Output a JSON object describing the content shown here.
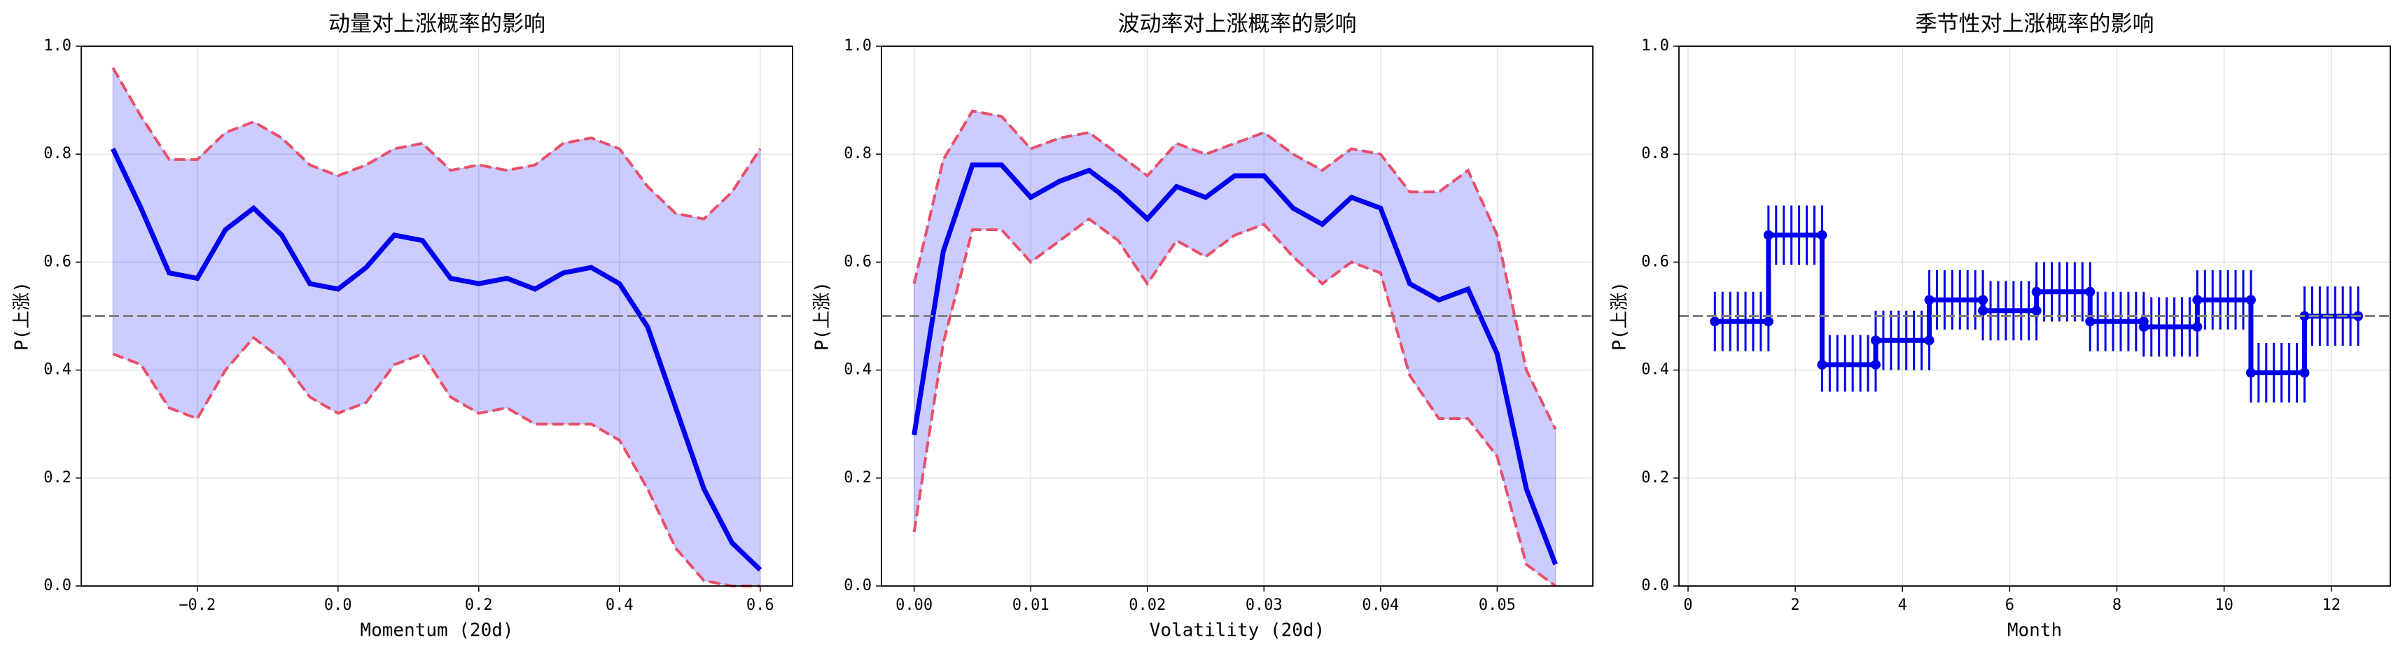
{
  "chart_data": [
    {
      "type": "band",
      "title": "动量对上涨概率的影响",
      "xlabel": "Momentum (20d)",
      "ylabel": "P(上涨)",
      "x": [
        -0.32,
        -0.28,
        -0.24,
        -0.2,
        -0.16,
        -0.12,
        -0.08,
        -0.04,
        0.0,
        0.04,
        0.08,
        0.12,
        0.16,
        0.2,
        0.24,
        0.28,
        0.32,
        0.36,
        0.4,
        0.44,
        0.48,
        0.52,
        0.56,
        0.6
      ],
      "values": [
        0.81,
        0.7,
        0.58,
        0.57,
        0.66,
        0.7,
        0.65,
        0.56,
        0.55,
        0.59,
        0.65,
        0.64,
        0.57,
        0.56,
        0.57,
        0.55,
        0.58,
        0.59,
        0.56,
        0.48,
        0.33,
        0.18,
        0.08,
        0.03
      ],
      "upper": [
        0.96,
        0.87,
        0.79,
        0.79,
        0.84,
        0.86,
        0.83,
        0.78,
        0.76,
        0.78,
        0.81,
        0.82,
        0.77,
        0.78,
        0.77,
        0.78,
        0.82,
        0.83,
        0.81,
        0.74,
        0.69,
        0.68,
        0.73,
        0.81
      ],
      "lower": [
        0.43,
        0.41,
        0.33,
        0.31,
        0.4,
        0.46,
        0.42,
        0.35,
        0.32,
        0.34,
        0.41,
        0.43,
        0.35,
        0.32,
        0.33,
        0.3,
        0.3,
        0.3,
        0.27,
        0.18,
        0.07,
        0.01,
        0.0,
        0.0
      ],
      "color": "#0000ee",
      "band_color": "#0000ff",
      "bound_color": "#e8506a",
      "ref_line": 0.5,
      "grid": true,
      "xlim": [
        -0.365,
        0.646
      ],
      "xticks": [
        {
          "value": -0.2,
          "label": "−0.2"
        },
        {
          "value": 0.0,
          "label": "0.0"
        },
        0.2,
        0.4,
        0.6
      ],
      "ylim": [
        0,
        1
      ],
      "yticks": [
        {
          "value": 0,
          "label": "0.0"
        },
        0.2,
        0.4,
        0.6,
        0.8,
        {
          "value": 1,
          "label": "1.0"
        }
      ]
    },
    {
      "type": "band",
      "title": "波动率对上涨概率的影响",
      "xlabel": "Volatility (20d)",
      "ylabel": "P(上涨)",
      "x": [
        0,
        0.0025,
        0.005,
        0.0075,
        0.01,
        0.0125,
        0.015,
        0.0175,
        0.02,
        0.0225,
        0.025,
        0.0275,
        0.03,
        0.0325,
        0.035,
        0.0375,
        0.04,
        0.0425,
        0.045,
        0.0475,
        0.05,
        0.0525,
        0.055
      ],
      "values": [
        0.28,
        0.62,
        0.78,
        0.78,
        0.72,
        0.75,
        0.77,
        0.73,
        0.68,
        0.74,
        0.72,
        0.76,
        0.76,
        0.7,
        0.67,
        0.72,
        0.7,
        0.56,
        0.53,
        0.55,
        0.43,
        0.18,
        0.04
      ],
      "upper": [
        0.56,
        0.79,
        0.88,
        0.87,
        0.81,
        0.83,
        0.84,
        0.8,
        0.76,
        0.82,
        0.8,
        0.82,
        0.84,
        0.8,
        0.77,
        0.81,
        0.8,
        0.73,
        0.73,
        0.77,
        0.65,
        0.4,
        0.29
      ],
      "lower": [
        0.1,
        0.45,
        0.66,
        0.66,
        0.6,
        0.64,
        0.68,
        0.64,
        0.56,
        0.64,
        0.61,
        0.65,
        0.67,
        0.61,
        0.56,
        0.6,
        0.58,
        0.39,
        0.31,
        0.31,
        0.24,
        0.04,
        0.0
      ],
      "color": "#0000ee",
      "band_color": "#0000ff",
      "bound_color": "#e8506a",
      "ref_line": 0.5,
      "grid": true,
      "xlim": [
        -0.0028,
        0.0582
      ],
      "xticks": [
        {
          "value": 0,
          "label": "0.00"
        },
        0.01,
        0.02,
        0.03,
        0.04,
        0.05
      ],
      "ylim": [
        0,
        1
      ],
      "yticks": [
        {
          "value": 0,
          "label": "0.0"
        },
        0.2,
        0.4,
        0.6,
        0.8,
        {
          "value": 1,
          "label": "1.0"
        }
      ]
    },
    {
      "type": "step",
      "title": "季节性对上涨概率的影响",
      "xlabel": "Month",
      "ylabel": "P(上涨)",
      "x": [
        1,
        2,
        3,
        4,
        5,
        6,
        7,
        8,
        9,
        10,
        11,
        12
      ],
      "values": [
        0.49,
        0.65,
        0.41,
        0.455,
        0.53,
        0.51,
        0.545,
        0.49,
        0.48,
        0.53,
        0.395,
        0.5
      ],
      "lower": [
        0.435,
        0.595,
        0.36,
        0.4,
        0.475,
        0.455,
        0.49,
        0.435,
        0.425,
        0.475,
        0.34,
        0.445
      ],
      "upper": [
        0.545,
        0.705,
        0.465,
        0.51,
        0.585,
        0.565,
        0.6,
        0.545,
        0.535,
        0.585,
        0.45,
        0.555
      ],
      "color": "#0000ee",
      "ref_line": 0.5,
      "grid": true,
      "xlim": [
        -0.17,
        13.1
      ],
      "xticks": [
        0,
        2,
        4,
        6,
        8,
        10,
        12
      ],
      "ylim": [
        0,
        1
      ],
      "yticks": [
        {
          "value": 0,
          "label": "0.0"
        },
        0.2,
        0.4,
        0.6,
        0.8,
        {
          "value": 1,
          "label": "1.0"
        }
      ]
    }
  ]
}
